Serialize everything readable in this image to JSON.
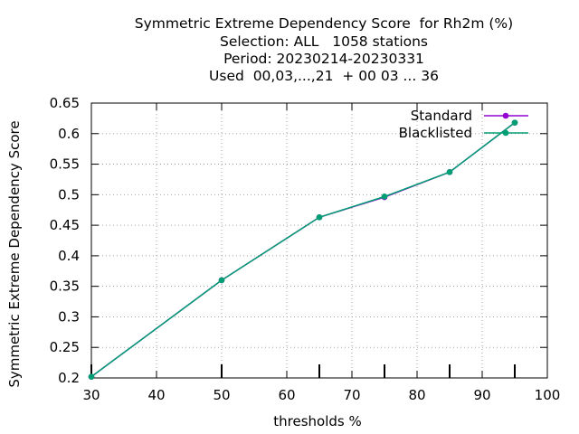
{
  "chart_data": {
    "type": "line",
    "title_lines": [
      "Symmetric Extreme Dependency Score  for Rh2m (%)",
      "Selection: ALL   1058 stations",
      "Period: 20230214-20230331",
      "Used  00,03,...,21  + 00 03 ... 36"
    ],
    "xlabel": "thresholds %",
    "ylabel": "Symmetric Extreme Dependency Score",
    "xlim": [
      30,
      100
    ],
    "ylim": [
      0.2,
      0.65
    ],
    "xticks": [
      30,
      40,
      50,
      60,
      70,
      80,
      90,
      100
    ],
    "xtick_labels": [
      "30",
      "40",
      "50",
      "60",
      "70",
      "80",
      "90",
      "100"
    ],
    "yticks": [
      0.2,
      0.25,
      0.3,
      0.35,
      0.4,
      0.45,
      0.5,
      0.55,
      0.6,
      0.65
    ],
    "ytick_labels": [
      "0.2",
      "0.25",
      "0.3",
      "0.35",
      "0.4",
      "0.45",
      "0.5",
      "0.55",
      "0.6",
      "0.65"
    ],
    "grid": true,
    "legend_position": "top-right",
    "threshold_markers": [
      30,
      50,
      65,
      75,
      85,
      95
    ],
    "series": [
      {
        "name": "Standard",
        "color": "#9400d3",
        "x": [
          30,
          50,
          65,
          75,
          85,
          95
        ],
        "y": [
          0.202,
          0.36,
          0.463,
          0.496,
          0.537,
          0.618
        ]
      },
      {
        "name": "Blacklisted",
        "color": "#009e73",
        "x": [
          30,
          50,
          65,
          75,
          85,
          95
        ],
        "y": [
          0.202,
          0.36,
          0.463,
          0.497,
          0.537,
          0.618
        ]
      }
    ]
  }
}
